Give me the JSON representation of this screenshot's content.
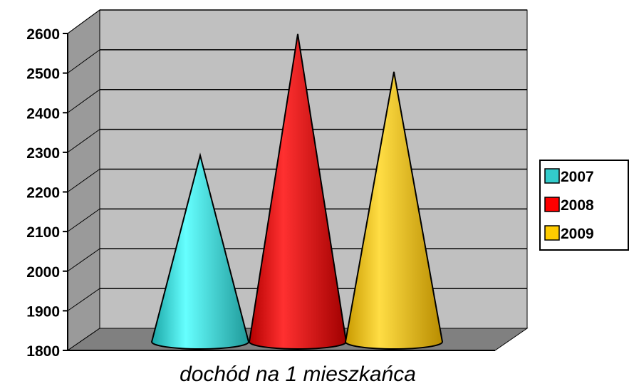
{
  "chart_data": {
    "type": "bar",
    "style": "3d-cone",
    "categories": [
      "dochód na 1 mieszkańca"
    ],
    "series": [
      {
        "name": "2007",
        "values": [
          2240
        ],
        "color": "#33cccc"
      },
      {
        "name": "2008",
        "values": [
          2545
        ],
        "color": "#ff0000"
      },
      {
        "name": "2009",
        "values": [
          2450
        ],
        "color": "#ffcc00"
      }
    ],
    "xlabel": "dochód na 1 mieszkańca",
    "ylabel": "",
    "ylim": [
      1800,
      2600
    ],
    "yticks": [
      "1800",
      "1900",
      "2000",
      "2100",
      "2200",
      "2300",
      "2400",
      "2500",
      "2600"
    ],
    "grid": true,
    "legend_position": "right",
    "colors": {
      "wall": "#c0c0c0",
      "floor": "#808080",
      "gridline": "#000000"
    }
  }
}
